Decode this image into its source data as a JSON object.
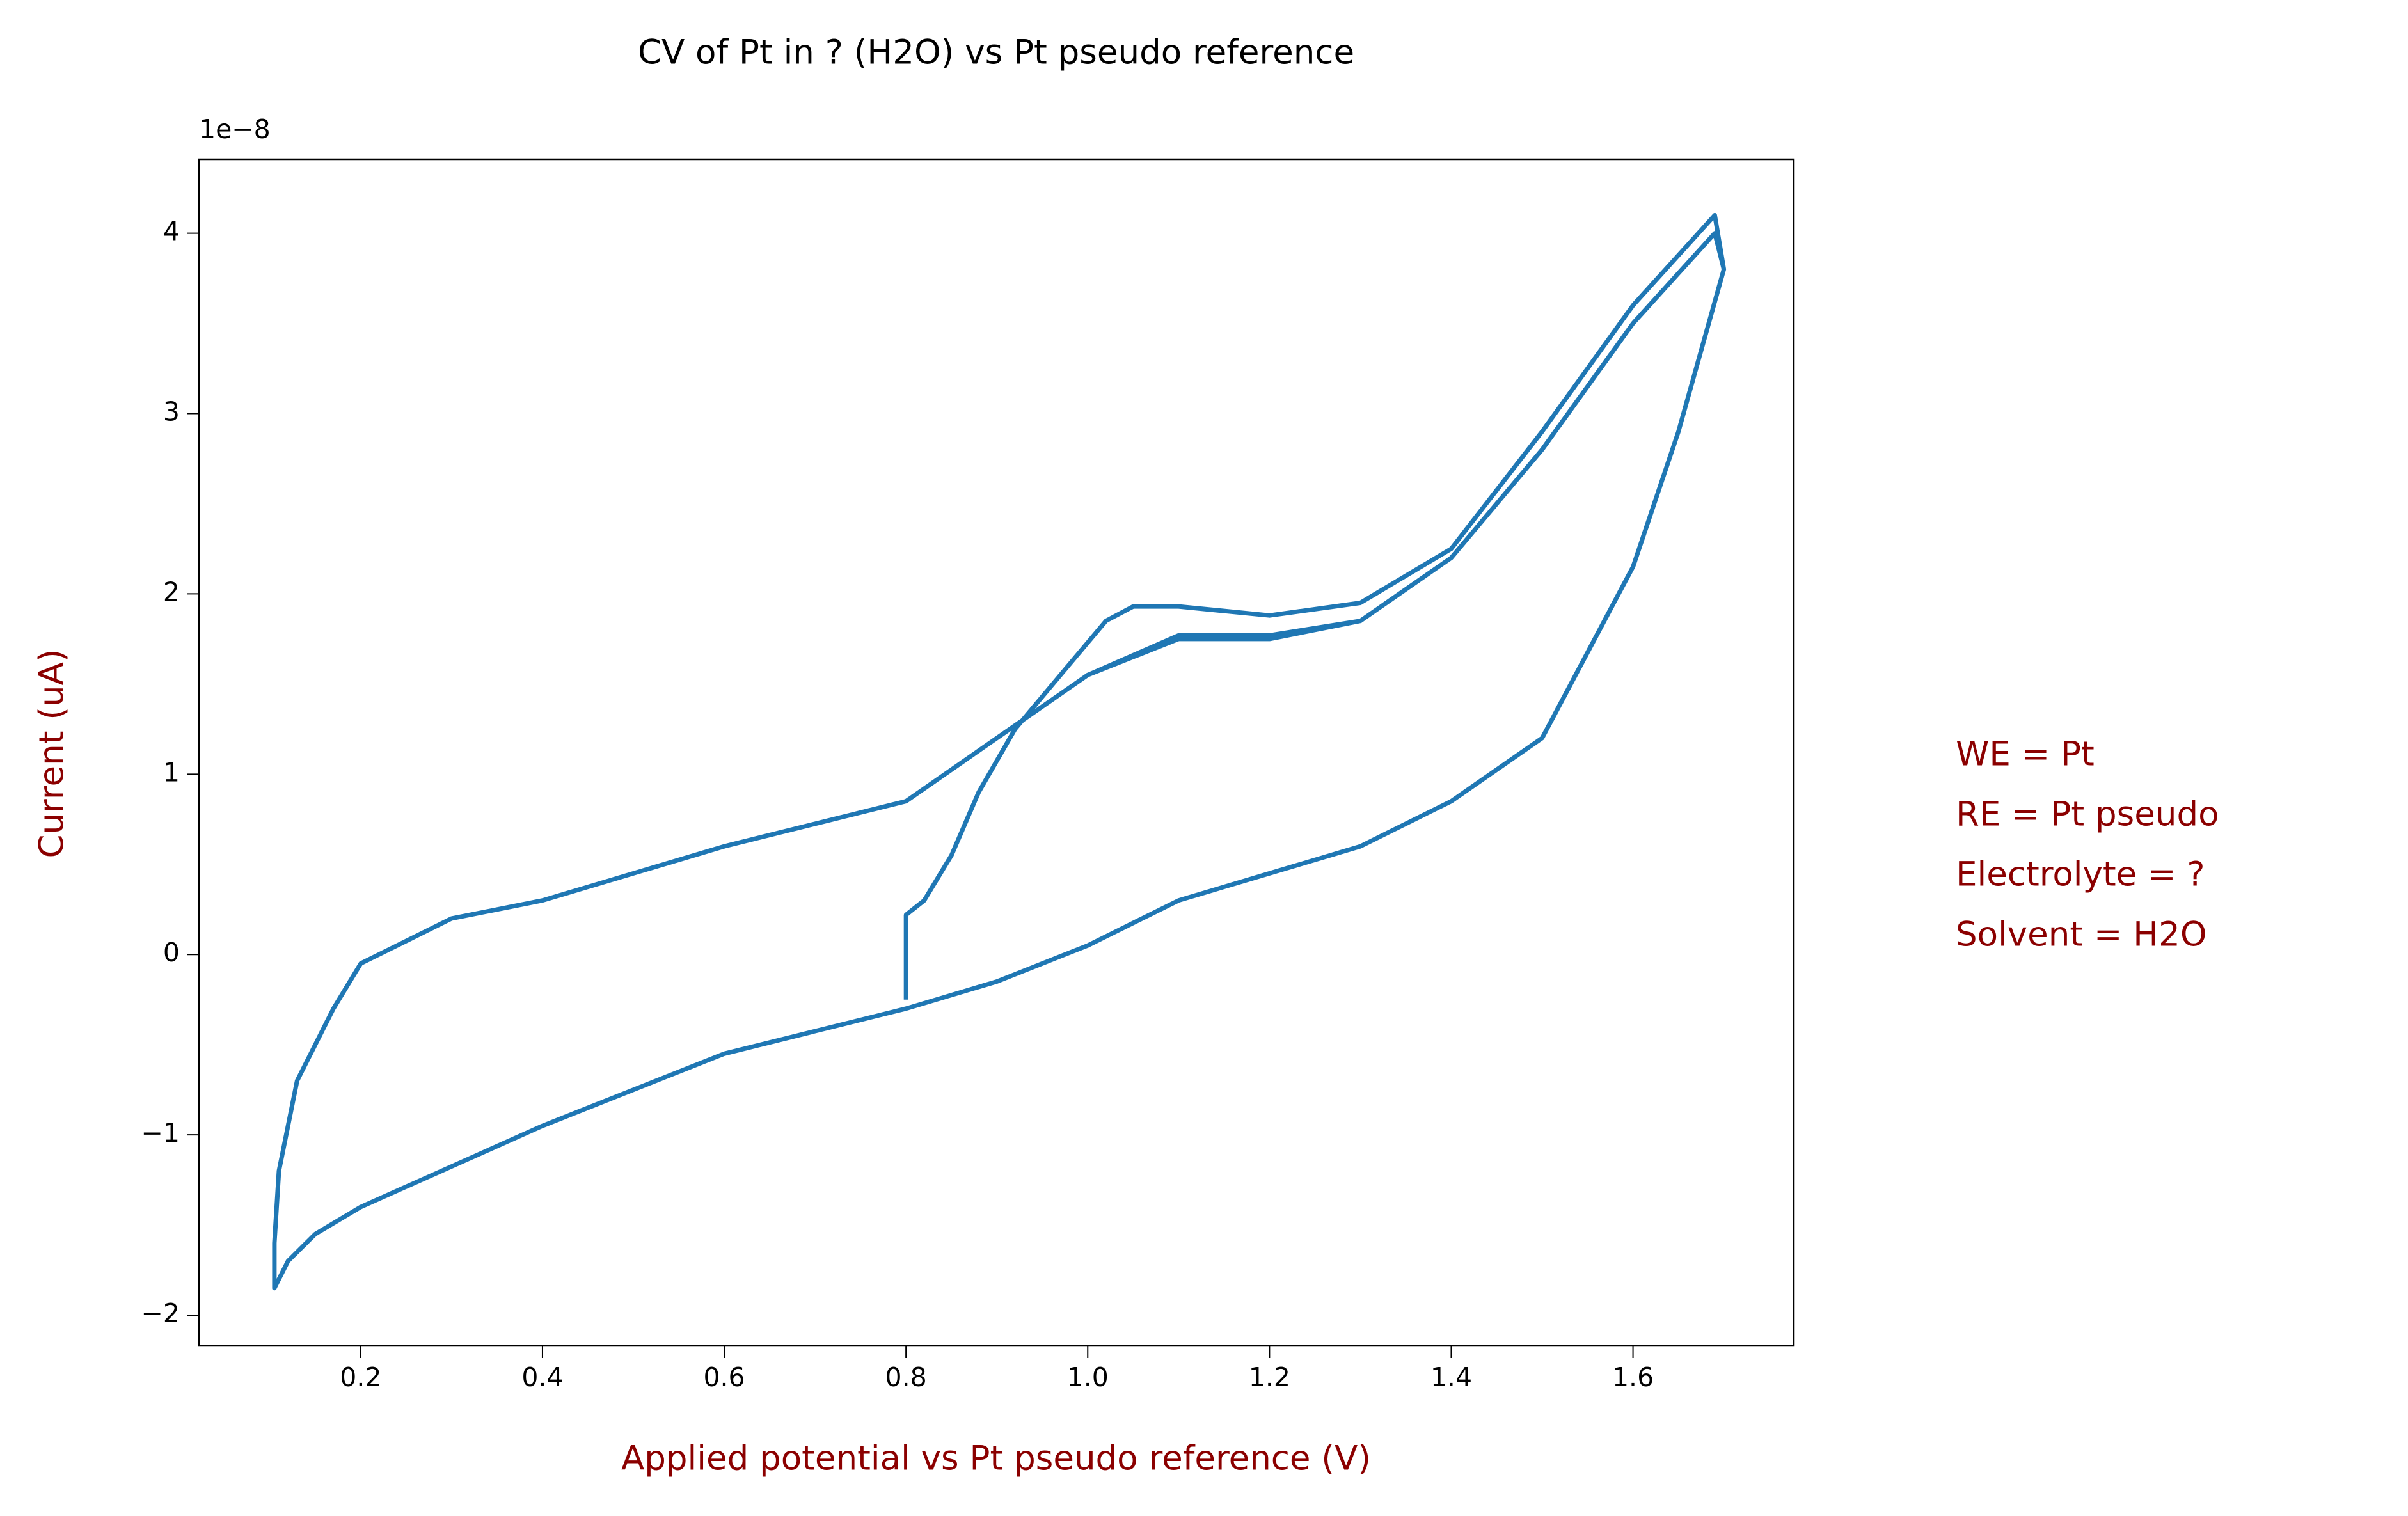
{
  "chart_data": {
    "type": "line",
    "title": "CV of Pt in ? (H2O) vs Pt pseudo reference",
    "x_label": "Applied potential vs Pt pseudo reference (V)",
    "y_label": "Current (uA)",
    "y_offset_label": "1e−8",
    "annotations": [
      "WE = Pt",
      "RE = Pt pseudo",
      "Electrolyte = ?",
      "Solvent = H2O"
    ],
    "xlim": [
      0.022,
      1.777
    ],
    "ylim": [
      -2.17,
      4.41
    ],
    "xticks": [
      0.2,
      0.4,
      0.6,
      0.8,
      {
        "value": 1,
        "label": "1.0"
      },
      1.2,
      1.4,
      1.6
    ],
    "yticks": [
      {
        "value": -2,
        "label": "−2"
      },
      {
        "value": -1,
        "label": "−1"
      },
      0,
      1,
      2,
      3,
      4
    ],
    "series": [
      {
        "color": "#1f77b4",
        "x": [
          0.8,
          0.8,
          0.82,
          0.85,
          0.88,
          0.92,
          0.97,
          1.02,
          1.05,
          1.1,
          1.2,
          1.3,
          1.4,
          1.5,
          1.6,
          1.69,
          1.7,
          1.65,
          1.6,
          1.5,
          1.4,
          1.3,
          1.2,
          1.1,
          1.0,
          0.9,
          0.8,
          0.6,
          0.4,
          0.2,
          0.15,
          0.12,
          0.105,
          0.105,
          0.11,
          0.13,
          0.17,
          0.2,
          0.3,
          0.4,
          0.6,
          0.8,
          0.9,
          1.0,
          1.1,
          1.2,
          1.3,
          1.4,
          1.5,
          1.6,
          1.69,
          1.7,
          1.65,
          1.6,
          1.5,
          1.4,
          1.3,
          1.2,
          1.1,
          1.0,
          0.9,
          0.8,
          0.6,
          0.4,
          0.2,
          0.15,
          0.12,
          0.105,
          0.105,
          0.11,
          0.13,
          0.17,
          0.2,
          0.3,
          0.4,
          0.6,
          0.8,
          0.9,
          1.0,
          1.1,
          1.2,
          1.3,
          1.4,
          1.5,
          1.6,
          1.69,
          1.7,
          1.65,
          1.6,
          1.5,
          1.4,
          1.3,
          1.2,
          1.1,
          1.0,
          0.9,
          0.8
        ],
        "values": [
          -0.25,
          0.22,
          0.3,
          0.55,
          0.9,
          1.25,
          1.55,
          1.85,
          1.93,
          1.93,
          1.88,
          1.95,
          2.25,
          2.9,
          3.6,
          4.1,
          3.8,
          2.9,
          2.15,
          1.2,
          0.85,
          0.6,
          0.45,
          0.3,
          0.05,
          -0.15,
          -0.3,
          -0.55,
          -0.95,
          -1.4,
          -1.55,
          -1.7,
          -1.85,
          -1.6,
          -1.2,
          -0.7,
          -0.3,
          -0.05,
          0.2,
          0.3,
          0.6,
          0.85,
          1.2,
          1.55,
          1.75,
          1.75,
          1.85,
          2.2,
          2.8,
          3.5,
          4.0,
          3.8,
          2.9,
          2.15,
          1.2,
          0.85,
          0.6,
          0.45,
          0.3,
          0.05,
          -0.15,
          -0.3,
          -0.55,
          -0.95,
          -1.4,
          -1.55,
          -1.7,
          -1.85,
          -1.6,
          -1.2,
          -0.7,
          -0.3,
          -0.05,
          0.2,
          0.3,
          0.6,
          0.85,
          1.2,
          1.55,
          1.77,
          1.77,
          1.85,
          2.2,
          2.8,
          3.5,
          4.0,
          3.8,
          2.9,
          2.15,
          1.2,
          0.85,
          0.6,
          0.45,
          0.3,
          0.05,
          -0.15,
          -0.3
        ]
      }
    ]
  }
}
